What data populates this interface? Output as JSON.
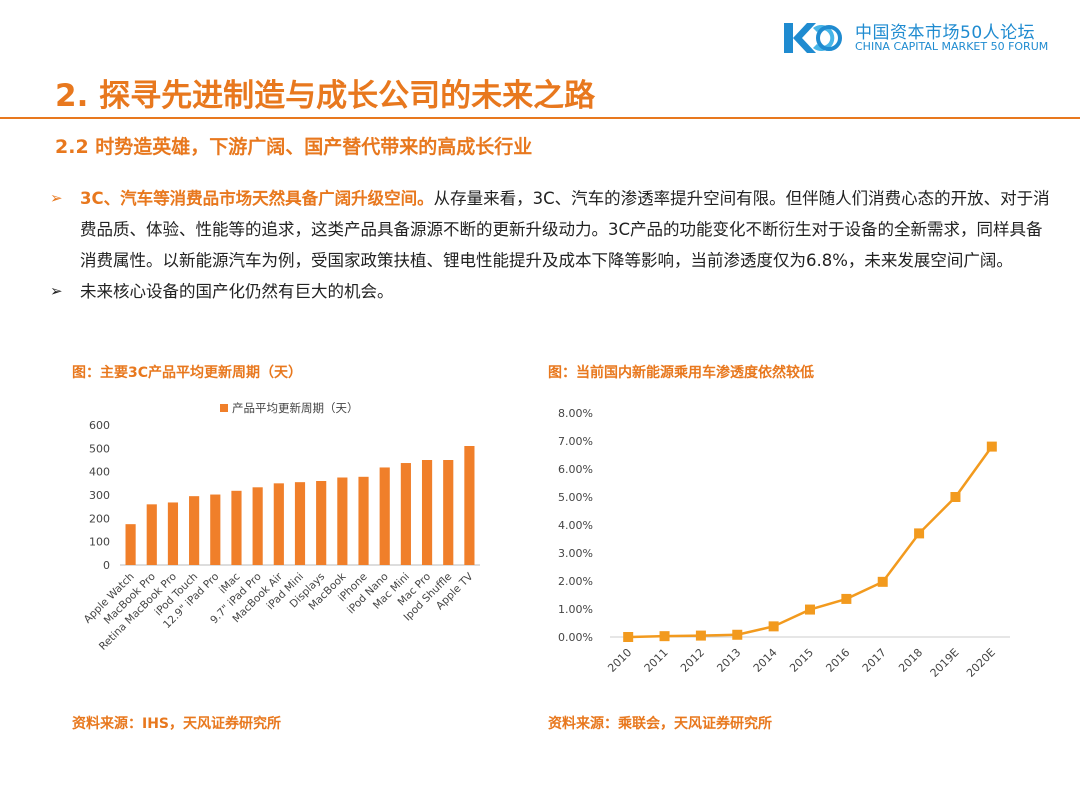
{
  "logo": {
    "mark_text": "K50",
    "cn": "中国资本市场50人论坛",
    "en": "CHINA CAPITAL MARKET 50 FORUM"
  },
  "title": "2. 探寻先进制造与成长公司的未来之路",
  "subtitle": "2.2 时势造英雄，下游广阔、国产替代带来的高成长行业",
  "bullets": [
    {
      "lead": "3C、汽车等消费品市场天然具备广阔升级空间。",
      "text": "从存量来看，3C、汽车的渗透率提升空间有限。但伴随人们消费心态的开放、对于消费品质、体验、性能等的追求，这类产品具备源源不断的更新升级动力。3C产品的功能变化不断衍生对于设备的全新需求，同样具备消费属性。以新能源汽车为例，受国家政策扶植、锂电性能提升及成本下降等影响，当前渗透度仅为6.8%，未来发展空间广阔。"
    },
    {
      "lead": "",
      "text": "未来核心设备的国产化仍然有巨大的机会。"
    }
  ],
  "figures": {
    "left_caption": "图：主要3C产品平均更新周期（天）",
    "left_source": "资料来源：IHS，天风证券研究所",
    "right_caption": "图：当前国内新能源乘用车渗透度依然较低",
    "right_source": "资料来源：乘联会，天风证券研究所"
  },
  "chart_data": [
    {
      "type": "bar",
      "series": [
        {
          "name": "产品平均更新周期（天）",
          "values": [
            175,
            260,
            268,
            295,
            302,
            318,
            333,
            350,
            355,
            360,
            375,
            378,
            418,
            437,
            450,
            450,
            510
          ]
        }
      ],
      "categories": [
        "Apple Watch",
        "MacBook Pro",
        "Retina MacBook Pro",
        "iPod Touch",
        "12.9\" iPad Pro",
        "iMac",
        "9.7\" iPad Pro",
        "MacBook Air",
        "iPad Mini",
        "Displays",
        "MacBook",
        "iPhone",
        "iPod Nano",
        "Mac Mini",
        "Mac Pro",
        "Ipod Shuffle",
        "Apple TV"
      ],
      "ylim": [
        0,
        600
      ],
      "yticks": [
        "0",
        "100",
        "200",
        "300",
        "400",
        "500",
        "600"
      ],
      "legend": "top-center",
      "grid": false,
      "color": "#f07f2a"
    },
    {
      "type": "line",
      "x": [
        "2010",
        "2011",
        "2012",
        "2013",
        "2014",
        "2015",
        "2016",
        "2017",
        "2018",
        "2019E",
        "2020E"
      ],
      "values": [
        0.0,
        0.03,
        0.05,
        0.08,
        0.38,
        0.98,
        1.36,
        1.97,
        3.7,
        5.0,
        6.8
      ],
      "ylim": [
        0,
        8
      ],
      "yticks": [
        "0.00%",
        "1.00%",
        "2.00%",
        "3.00%",
        "4.00%",
        "5.00%",
        "6.00%",
        "7.00%",
        "8.00%"
      ],
      "grid": false,
      "markers": "square",
      "color": "#f29a1e"
    }
  ]
}
